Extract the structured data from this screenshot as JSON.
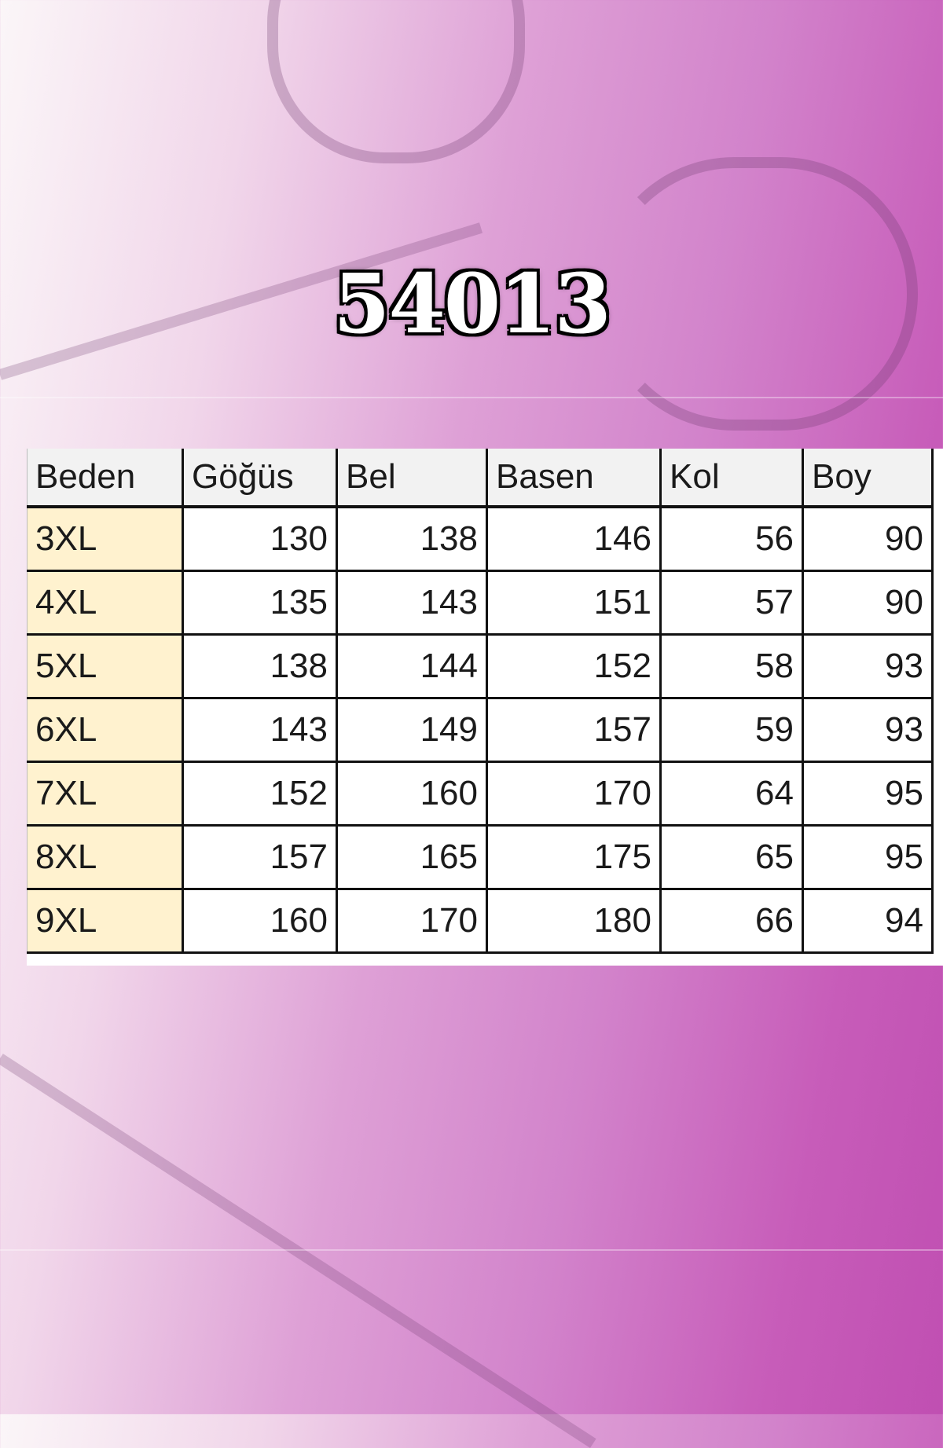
{
  "product_code": "54013",
  "colors": {
    "accent": "#c75cb9",
    "size_cell": "#fff2cf",
    "header_bg": "#f2f2f2"
  },
  "size_table": {
    "headers": [
      "Beden",
      "Göğüs",
      "Bel",
      "Basen",
      "Kol",
      "Boy"
    ],
    "rows": [
      [
        "3XL",
        "130",
        "138",
        "146",
        "56",
        "90"
      ],
      [
        "4XL",
        "135",
        "143",
        "151",
        "57",
        "90"
      ],
      [
        "5XL",
        "138",
        "144",
        "152",
        "58",
        "93"
      ],
      [
        "6XL",
        "143",
        "149",
        "157",
        "59",
        "93"
      ],
      [
        "7XL",
        "152",
        "160",
        "170",
        "64",
        "95"
      ],
      [
        "8XL",
        "157",
        "165",
        "175",
        "65",
        "95"
      ],
      [
        "9XL",
        "160",
        "170",
        "180",
        "66",
        "94"
      ]
    ]
  }
}
